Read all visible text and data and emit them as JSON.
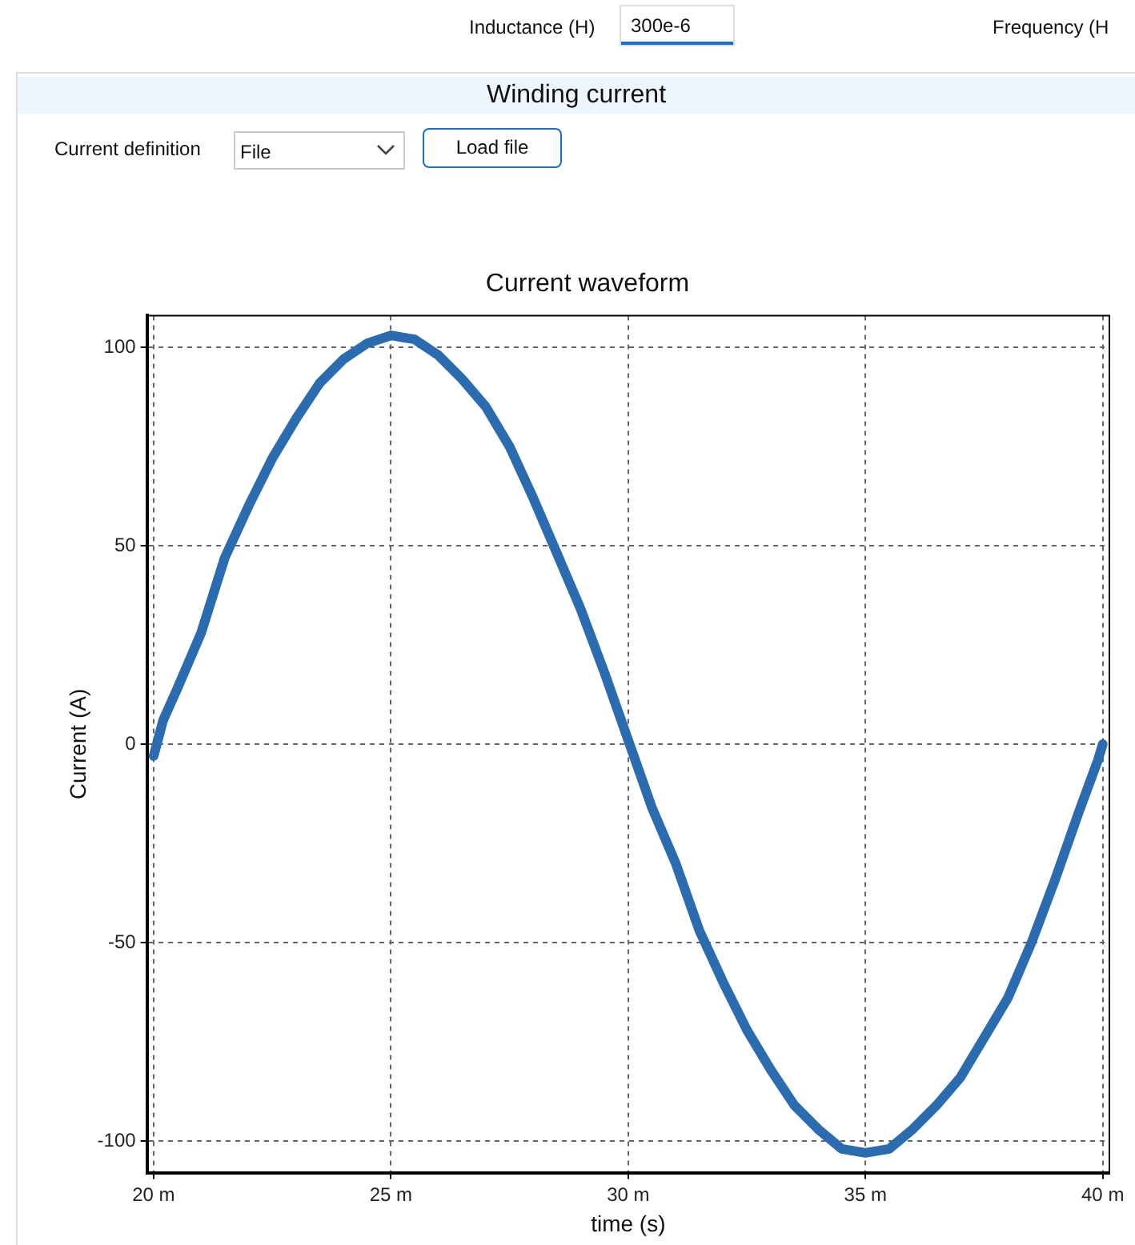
{
  "chart_data": {
    "type": "line",
    "title": "Current waveform",
    "xlabel": "time (s)",
    "ylabel": "Current (A)",
    "annotations": [
      "Inductance (H)",
      "300e-6",
      "Frequency (H",
      "Winding current",
      "Current definition",
      "File",
      "Load file"
    ],
    "x": [
      20,
      20.2,
      20.5,
      21,
      21.5,
      22,
      22.5,
      23,
      23.5,
      24,
      24.5,
      25,
      25.5,
      26,
      26.5,
      27,
      27.5,
      28,
      28.5,
      29,
      29.5,
      30,
      30.5,
      31,
      31.5,
      32,
      32.5,
      33,
      33.5,
      34,
      34.5,
      35,
      35.5,
      36,
      36.5,
      37,
      37.5,
      38,
      38.5,
      39,
      39.5,
      39.9,
      40
    ],
    "series": [
      {
        "color": "#2b6cb0",
        "values": [
          -3,
          6,
          14,
          28,
          47,
          60,
          72,
          82,
          91,
          97,
          101,
          103,
          102,
          98,
          92,
          85,
          75,
          62,
          48,
          34,
          18,
          1,
          -16,
          -30,
          -47,
          -60,
          -72,
          -82,
          -91,
          -97,
          -102,
          -103,
          -102,
          -97,
          -91,
          -84,
          -74,
          -64,
          -50,
          -34,
          -17,
          -4,
          0
        ]
      }
    ],
    "xlim": [
      19.86,
      40.14
    ],
    "ylim": [
      -108,
      108
    ],
    "xticks": [
      {
        "value": 20,
        "label": "20 m"
      },
      {
        "value": 25,
        "label": "25 m"
      },
      {
        "value": 30,
        "label": "30 m"
      },
      {
        "value": 35,
        "label": "35 m"
      },
      {
        "value": 40,
        "label": "40 m"
      }
    ],
    "yticks": [
      -100,
      -50,
      0,
      50,
      100
    ],
    "grid": true,
    "legend": false,
    "marker": "none",
    "line_style": "solid"
  }
}
